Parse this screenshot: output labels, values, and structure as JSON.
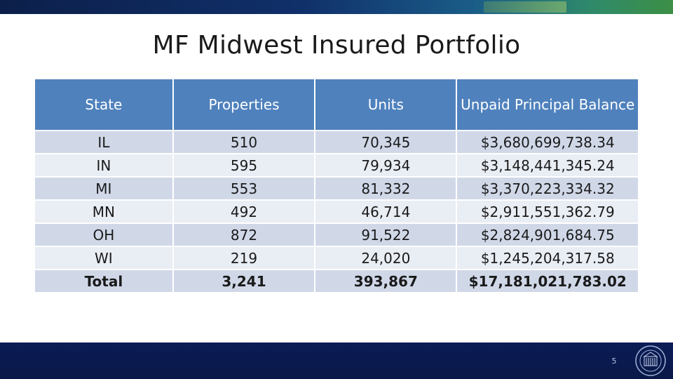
{
  "slide": {
    "title": "MF Midwest Insured Portfolio",
    "page_number": "5"
  },
  "table": {
    "headers": {
      "state": "State",
      "properties": "Properties",
      "units": "Units",
      "upb": "Unpaid Principal Balance"
    },
    "rows": [
      {
        "state": "IL",
        "properties": "510",
        "units": "70,345",
        "upb": "$3,680,699,738.34"
      },
      {
        "state": "IN",
        "properties": "595",
        "units": "79,934",
        "upb": "$3,148,441,345.24"
      },
      {
        "state": "MI",
        "properties": "553",
        "units": "81,332",
        "upb": "$3,370,223,334.32"
      },
      {
        "state": "MN",
        "properties": "492",
        "units": "46,714",
        "upb": "$2,911,551,362.79"
      },
      {
        "state": "OH",
        "properties": "872",
        "units": "91,522",
        "upb": "$2,824,901,684.75"
      },
      {
        "state": "WI",
        "properties": "219",
        "units": "24,020",
        "upb": "$1,245,204,317.58"
      }
    ],
    "total": {
      "state": "Total",
      "properties": "3,241",
      "units": "393,867",
      "upb": "$17,181,021,783.02"
    }
  },
  "colors": {
    "header_fill": "#4f81bd",
    "row_fill_dark": "#d0d8e8",
    "row_fill_light": "#e9edf4",
    "top_bar": "#10306a",
    "bottom_bar": "#0b1c55"
  },
  "icons": {
    "seal": "hud-seal-icon"
  }
}
